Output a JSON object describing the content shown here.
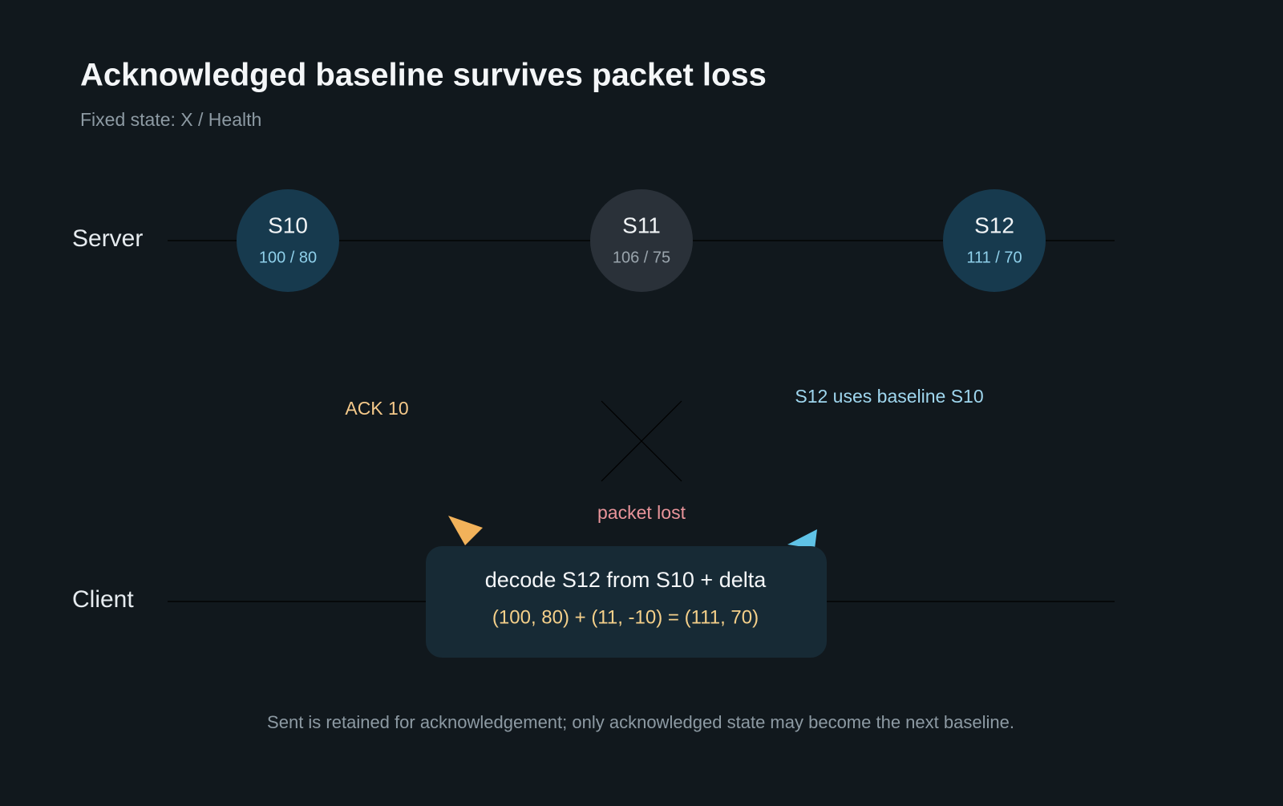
{
  "header": {
    "title": "Acknowledged baseline survives packet loss",
    "subtitle": "Fixed state: X / Health"
  },
  "lanes": [
    "Server",
    "Client"
  ],
  "nodes": [
    {
      "label": "S10",
      "value": "100 / 80"
    },
    {
      "label": "S11",
      "value": "106 / 75"
    },
    {
      "label": "S12",
      "value": "111 / 70"
    }
  ],
  "annotations": {
    "ack": "ACK 10",
    "lost": "packet lost",
    "baseline": "S12 uses baseline S10"
  },
  "decode_box": {
    "title": "decode S12 from S10 + delta",
    "formula": "(100, 80) + (11, -10) = (111, 70)"
  },
  "footer": "Sent is retained for acknowledgement; only acknowledged state may become the next baseline."
}
